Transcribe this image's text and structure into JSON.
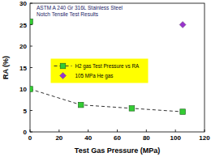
{
  "chart_data": {
    "type": "line",
    "title": "ASTM A 240 Gr 316L Stainless Steel",
    "subtitle": "Notch Tensile Test Results",
    "x_label": "Test Gas Pressure (MPa)",
    "y_label": "RA (%)",
    "xlim": [
      0,
      120
    ],
    "xticks": [
      0,
      20,
      40,
      60,
      80,
      100,
      120
    ],
    "ylim": [
      0,
      30
    ],
    "yticks": [
      0,
      5,
      10,
      15,
      20,
      25,
      30
    ],
    "grid": false,
    "legend": "center",
    "series": [
      {
        "name": "H2 gas Test Pressure vs RA",
        "type": "line",
        "color": "#33cc33",
        "marker": "square",
        "line_style": "dashed",
        "x": [
          0,
          35,
          70,
          105
        ],
        "values": [
          10,
          6.3,
          5.5,
          4.7
        ]
      },
      {
        "type": "scatter",
        "color": "#33cc33",
        "marker": "square",
        "line_style": "none",
        "x": [
          0
        ],
        "values": [
          25.7
        ]
      },
      {
        "name": "105 MPa He gas",
        "type": "scatter",
        "color": "#9933cc",
        "marker": "diamond",
        "line_style": "none",
        "x": [
          105
        ],
        "values": [
          25
        ]
      }
    ]
  }
}
